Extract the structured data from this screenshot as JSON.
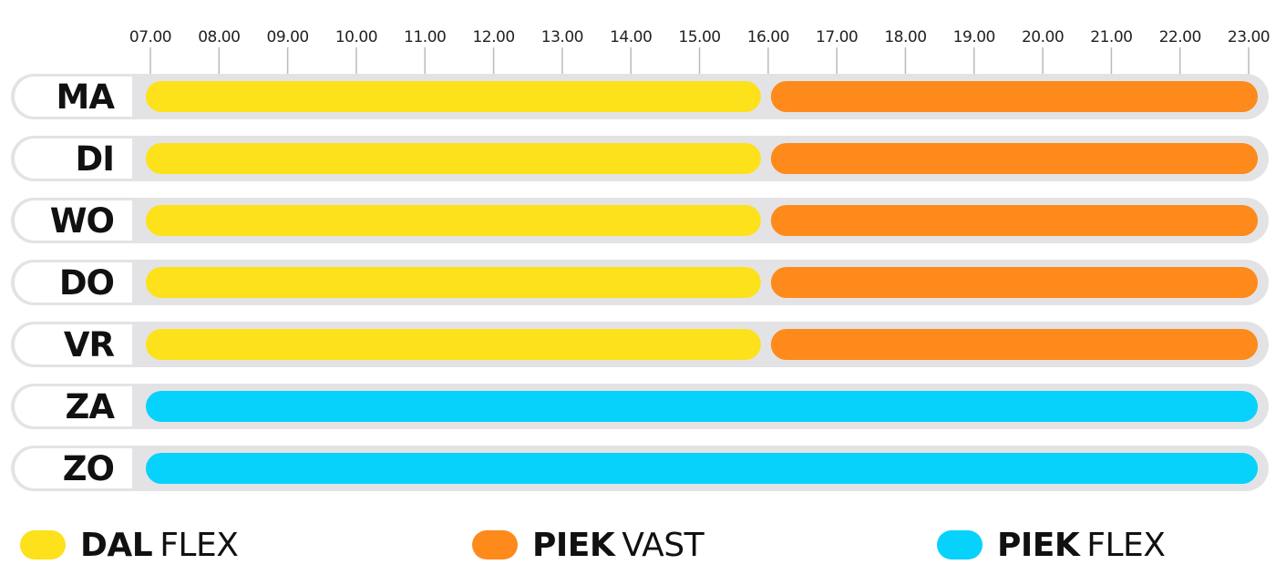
{
  "chart_data": {
    "type": "gantt",
    "x_ticks": [
      "07.00",
      "08.00",
      "09.00",
      "10.00",
      "11.00",
      "12.00",
      "13.00",
      "14.00",
      "15.00",
      "16.00",
      "17.00",
      "18.00",
      "19.00",
      "20.00",
      "21.00",
      "22.00",
      "23.00"
    ],
    "xlim": [
      7,
      23
    ],
    "categories": [
      {
        "label": "MA",
        "segments": [
          {
            "start": 7,
            "end": 16,
            "series": "dal_flex"
          },
          {
            "start": 16,
            "end": 23,
            "series": "piek_vast"
          }
        ]
      },
      {
        "label": "DI",
        "segments": [
          {
            "start": 7,
            "end": 16,
            "series": "dal_flex"
          },
          {
            "start": 16,
            "end": 23,
            "series": "piek_vast"
          }
        ]
      },
      {
        "label": "WO",
        "segments": [
          {
            "start": 7,
            "end": 16,
            "series": "dal_flex"
          },
          {
            "start": 16,
            "end": 23,
            "series": "piek_vast"
          }
        ]
      },
      {
        "label": "DO",
        "segments": [
          {
            "start": 7,
            "end": 16,
            "series": "dal_flex"
          },
          {
            "start": 16,
            "end": 23,
            "series": "piek_vast"
          }
        ]
      },
      {
        "label": "VR",
        "segments": [
          {
            "start": 7,
            "end": 16,
            "series": "dal_flex"
          },
          {
            "start": 16,
            "end": 23,
            "series": "piek_vast"
          }
        ]
      },
      {
        "label": "ZA",
        "segments": [
          {
            "start": 7,
            "end": 23,
            "series": "piek_flex"
          }
        ]
      },
      {
        "label": "ZO",
        "segments": [
          {
            "start": 7,
            "end": 23,
            "series": "piek_flex"
          }
        ]
      }
    ],
    "series": {
      "dal_flex": {
        "bold": "DAL",
        "regular": "FLEX",
        "color": "#FDE11A"
      },
      "piek_vast": {
        "bold": "PIEK",
        "regular": "VAST",
        "color": "#FD8A1A"
      },
      "piek_flex": {
        "bold": "PIEK",
        "regular": "FLEX",
        "color": "#06D2FB"
      }
    },
    "legend_placement": "bottom"
  },
  "legend": [
    {
      "bold": "DAL",
      "regular": "FLEX",
      "color": "#FDE11A"
    },
    {
      "bold": "PIEK",
      "regular": "VAST",
      "color": "#FD8A1A"
    },
    {
      "bold": "PIEK",
      "regular": "FLEX",
      "color": "#06D2FB"
    }
  ]
}
